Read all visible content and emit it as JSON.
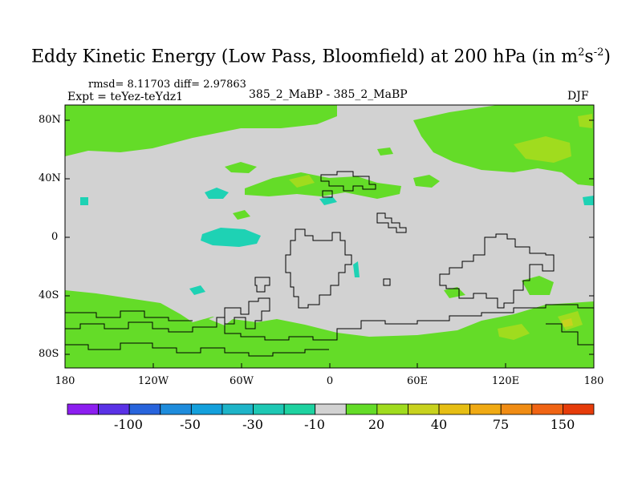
{
  "title": {
    "main": "Eddy Kinetic Energy (Low Pass, Bloomfield) at 200 hPa (in m",
    "sup1": "2",
    "mid": "s",
    "sup2": "-2",
    "end": ")"
  },
  "stats": "rmsd= 8.11703 diff= 2.97863",
  "expt": "Expt = teYez-teYdz1",
  "center_label": "385_2_MaBP - 385_2_MaBP",
  "season": "DJF",
  "axes": {
    "lat_ticks": [
      "80N",
      "40N",
      "0",
      "40S",
      "80S"
    ],
    "lon_ticks": [
      "180",
      "120W",
      "60W",
      "0",
      "60E",
      "120E",
      "180"
    ]
  },
  "colorbar": {
    "colors": [
      "#8c1ef0",
      "#5a32e6",
      "#2864dc",
      "#1e8cdc",
      "#14a0dc",
      "#1eb4c8",
      "#1ec8b4",
      "#1ed2a0",
      "#d2d2d2",
      "#64dc28",
      "#a0dc1e",
      "#c8d21e",
      "#e6be14",
      "#f0aa14",
      "#f08c14",
      "#f06414",
      "#e63c0a"
    ],
    "labels": [
      "-100",
      "-50",
      "-30",
      "-10",
      "20",
      "40",
      "75",
      "150"
    ]
  },
  "colors": {
    "background": "#d2d2d2",
    "green": "#64dc28",
    "yellowgreen": "#a0dc1e",
    "cyan": "#1ed2b4"
  }
}
